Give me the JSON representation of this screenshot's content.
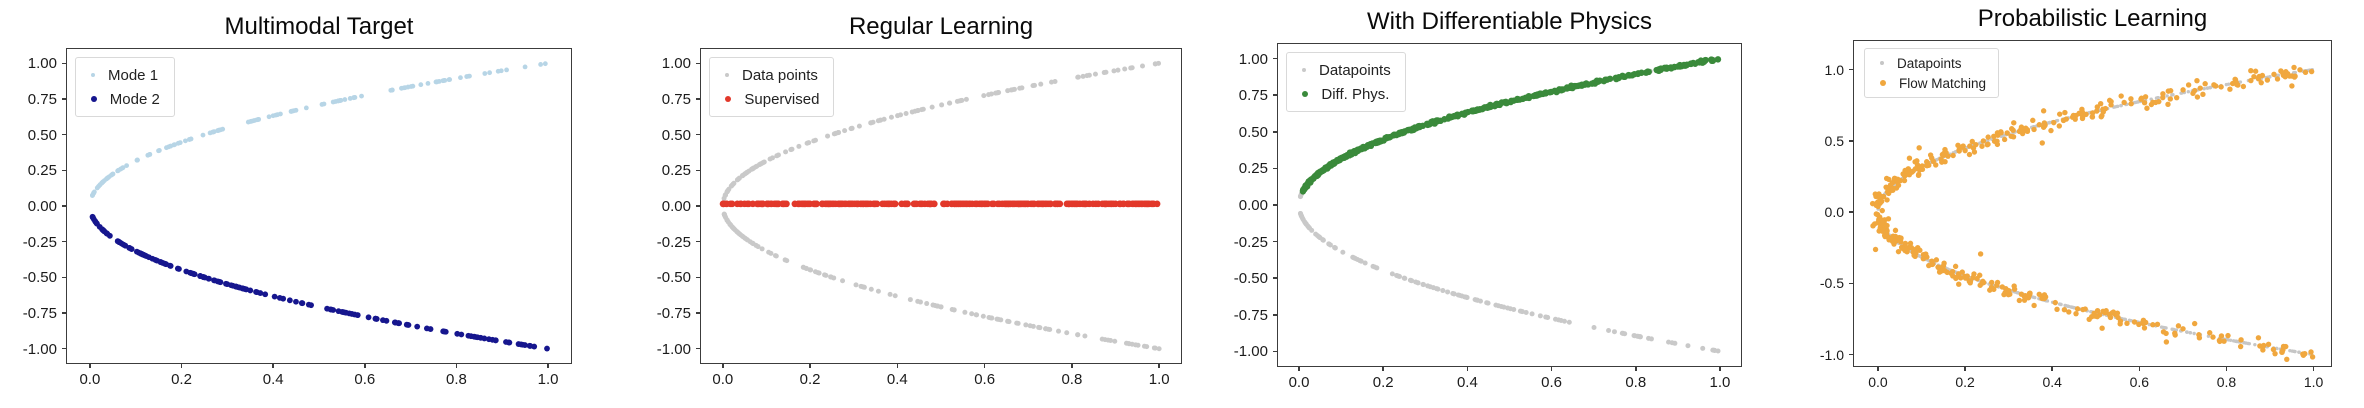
{
  "figure": {
    "background_color": "#ffffff",
    "description": "Four matplotlib-style scatter subplots of the multimodal inverse problem x = y^2 (y = ±sqrt(x))"
  },
  "chart_data": [
    {
      "type": "scatter",
      "title": "Multimodal Target",
      "xlabel": "",
      "ylabel": "",
      "xlim": [
        -0.05,
        1.05
      ],
      "ylim": [
        -1.1,
        1.1
      ],
      "grid": false,
      "legend_position": "upper-left",
      "xticks": {
        "values": [
          0.0,
          0.2,
          0.4,
          0.6,
          0.8,
          1.0
        ],
        "labels": [
          "0.0",
          "0.2",
          "0.4",
          "0.6",
          "0.8",
          "1.0"
        ]
      },
      "yticks": {
        "values": [
          1.0,
          0.75,
          0.5,
          0.25,
          0.0,
          -0.25,
          -0.5,
          -0.75,
          -1.0
        ],
        "labels": [
          "1.00",
          "0.75",
          "0.50",
          "0.25",
          "0.00",
          "-0.25",
          "-0.50",
          "-0.75",
          "-1.00"
        ]
      },
      "legend": [
        {
          "label": "Mode 1",
          "color": "#b7d5e6",
          "marker_radius": 2.0
        },
        {
          "label": "Mode 2",
          "color": "#16168e",
          "marker_radius": 2.9
        }
      ],
      "series": [
        {
          "name": "Mode 1",
          "curve": "y = sqrt(x), upper branch",
          "color": "#b7d5e6",
          "radius": 2.4,
          "n": 135,
          "seed": 7,
          "kind": "parabola",
          "t_min": 0.07,
          "t_max": 1.0,
          "y_noise": 0,
          "x_noise": 0,
          "outlier_frac": 0,
          "outlier_scale": 1
        },
        {
          "name": "Mode 2",
          "curve": "y = -sqrt(x), lower branch",
          "color": "#16168e",
          "radius": 2.9,
          "n": 170,
          "seed": 13,
          "kind": "parabola",
          "t_min": -1.0,
          "t_max": -0.07,
          "y_noise": 0,
          "x_noise": 0,
          "outlier_frac": 0,
          "outlier_scale": 1
        }
      ]
    },
    {
      "type": "scatter",
      "title": "Regular Learning",
      "xlabel": "",
      "ylabel": "",
      "xlim": [
        -0.05,
        1.05
      ],
      "ylim": [
        -1.1,
        1.1
      ],
      "grid": false,
      "legend_position": "upper-left",
      "xticks": {
        "values": [
          0.0,
          0.2,
          0.4,
          0.6,
          0.8,
          1.0
        ],
        "labels": [
          "0.0",
          "0.2",
          "0.4",
          "0.6",
          "0.8",
          "1.0"
        ]
      },
      "yticks": {
        "values": [
          1.0,
          0.75,
          0.5,
          0.25,
          0.0,
          -0.25,
          -0.5,
          -0.75,
          -1.0
        ],
        "labels": [
          "1.00",
          "0.75",
          "0.50",
          "0.25",
          "0.00",
          "-0.25",
          "-0.50",
          "-0.75",
          "-1.00"
        ]
      },
      "legend": [
        {
          "label": "Data points",
          "color": "#c9c9c9",
          "marker_radius": 2.0
        },
        {
          "label": "Supervised",
          "color": "#e2382a",
          "marker_radius": 3.2
        }
      ],
      "series": [
        {
          "name": "Data points",
          "curve": "y = sqrt(x), upper branch",
          "color": "#c9c9c9",
          "radius": 2.5,
          "n": 130,
          "seed": 3,
          "kind": "parabola",
          "t_min": 0.05,
          "t_max": 1.0,
          "y_noise": 0,
          "x_noise": 0,
          "outlier_frac": 0,
          "outlier_scale": 1
        },
        {
          "name": "Data points",
          "curve": "y = -sqrt(x), lower branch",
          "color": "#c9c9c9",
          "radius": 2.5,
          "n": 130,
          "seed": 4,
          "kind": "parabola",
          "t_min": -1.0,
          "t_max": -0.05,
          "y_noise": 0,
          "x_noise": 0,
          "outlier_frac": 0,
          "outlier_scale": 1
        },
        {
          "name": "Supervised",
          "curve": "y = 0 (mean of both modes)",
          "color": "#e2382a",
          "radius": 3.3,
          "n": 300,
          "seed": 5,
          "kind": "hline",
          "y": 0.015,
          "x_min": 0.0,
          "x_max": 1.0,
          "y_noise": 0,
          "x_noise": 0,
          "outlier_frac": 0,
          "outlier_scale": 1
        }
      ]
    },
    {
      "type": "scatter",
      "title": "With Differentiable Physics",
      "xlabel": "",
      "ylabel": "",
      "xlim": [
        -0.05,
        1.05
      ],
      "ylim": [
        -1.1,
        1.1
      ],
      "grid": false,
      "legend_position": "upper-left",
      "xticks": {
        "values": [
          0.0,
          0.2,
          0.4,
          0.6,
          0.8,
          1.0
        ],
        "labels": [
          "0.0",
          "0.2",
          "0.4",
          "0.6",
          "0.8",
          "1.0"
        ]
      },
      "yticks": {
        "values": [
          1.0,
          0.75,
          0.5,
          0.25,
          0.0,
          -0.25,
          -0.5,
          -0.75,
          -1.0
        ],
        "labels": [
          "1.00",
          "0.75",
          "0.50",
          "0.25",
          "0.00",
          "-0.25",
          "-0.50",
          "-0.75",
          "-1.00"
        ]
      },
      "legend": [
        {
          "label": "Datapoints",
          "color": "#c9c9c9",
          "marker_radius": 2.0
        },
        {
          "label": "Diff. Phys.",
          "color": "#3a8a3b",
          "marker_radius": 3.2
        }
      ],
      "series": [
        {
          "name": "Datapoints",
          "curve": "y = sqrt(x), upper branch",
          "color": "#c9c9c9",
          "radius": 2.5,
          "n": 130,
          "seed": 6,
          "kind": "parabola",
          "t_min": 0.05,
          "t_max": 1.0,
          "y_noise": 0,
          "x_noise": 0,
          "outlier_frac": 0,
          "outlier_scale": 1
        },
        {
          "name": "Datapoints",
          "curve": "y = -sqrt(x), lower branch",
          "color": "#c9c9c9",
          "radius": 2.5,
          "n": 130,
          "seed": 8,
          "kind": "parabola",
          "t_min": -1.0,
          "t_max": -0.05,
          "y_noise": 0,
          "x_noise": 0,
          "outlier_frac": 0,
          "outlier_scale": 1
        },
        {
          "name": "Diff. Phys.",
          "curve": "y = sqrt(x), converged to upper mode",
          "color": "#3a8a3b",
          "radius": 3.2,
          "n": 430,
          "seed": 9,
          "kind": "parabola",
          "t_min": 0.095,
          "t_max": 1.0,
          "y_noise": 0.004,
          "x_noise": 0,
          "outlier_frac": 0,
          "outlier_scale": 1
        }
      ]
    },
    {
      "type": "scatter",
      "title": "Probabilistic Learning",
      "xlabel": "",
      "ylabel": "",
      "xlim": [
        -0.055,
        1.04
      ],
      "ylim": [
        -1.08,
        1.2
      ],
      "grid": false,
      "legend_position": "upper-left",
      "xticks": {
        "values": [
          0.0,
          0.2,
          0.4,
          0.6,
          0.8,
          1.0
        ],
        "labels": [
          "0.0",
          "0.2",
          "0.4",
          "0.6",
          "0.8",
          "1.0"
        ]
      },
      "yticks": {
        "values": [
          1.0,
          0.5,
          0.0,
          -0.5,
          -1.0
        ],
        "labels": [
          "1.0",
          "0.5",
          "0.0",
          "-0.5",
          "-1.0"
        ]
      },
      "legend": [
        {
          "label": "Datapoints",
          "color": "#c6c6c6",
          "marker_radius": 2.0
        },
        {
          "label": "Flow Matching",
          "color": "#f0a73e",
          "marker_radius": 3.0
        }
      ],
      "series": [
        {
          "name": "Datapoints",
          "curve": "y = sqrt(x), upper branch",
          "color": "#c6c6c6",
          "radius": 1.7,
          "n": 340,
          "seed": 14,
          "kind": "parabola",
          "t_min": 0.02,
          "t_max": 1.0,
          "y_noise": 0,
          "x_noise": 0,
          "outlier_frac": 0,
          "outlier_scale": 1
        },
        {
          "name": "Datapoints",
          "curve": "y = -sqrt(x), lower branch",
          "color": "#c6c6c6",
          "radius": 1.7,
          "n": 340,
          "seed": 15,
          "kind": "parabola",
          "t_min": -1.0,
          "t_max": -0.02,
          "y_noise": 0,
          "x_noise": 0,
          "outlier_frac": 0,
          "outlier_scale": 1
        },
        {
          "name": "Flow Matching",
          "curve": "y = +sqrt(x) + noise, samples on upper branch",
          "color": "#f0a73e",
          "radius": 2.7,
          "n": 230,
          "seed": 16,
          "kind": "parabola",
          "t_min": 0.03,
          "t_max": 1.0,
          "y_noise": 0.028,
          "x_noise": 0.008,
          "outlier_frac": 0.03,
          "outlier_scale": 6
        },
        {
          "name": "Flow Matching",
          "curve": "y = -sqrt(x) + noise, samples on lower branch",
          "color": "#f0a73e",
          "radius": 2.7,
          "n": 230,
          "seed": 17,
          "kind": "parabola",
          "t_min": -1.0,
          "t_max": -0.03,
          "y_noise": 0.028,
          "x_noise": 0.008,
          "outlier_frac": 0.03,
          "outlier_scale": 6
        }
      ]
    }
  ]
}
